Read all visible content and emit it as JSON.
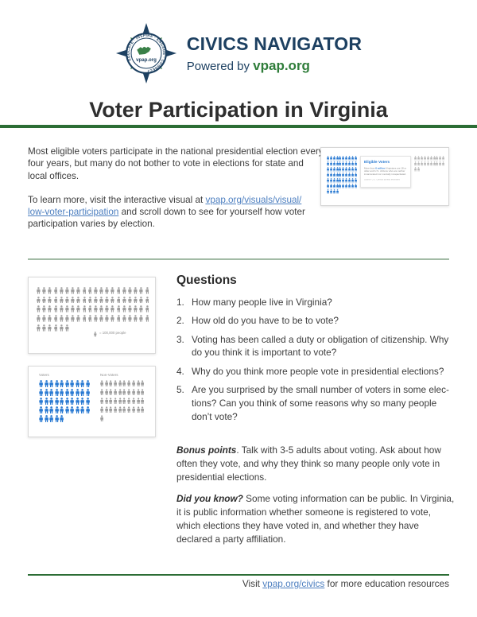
{
  "header": {
    "brand_title": "CIVICS NAVIGATOR",
    "powered_by_prefix": "Powered by ",
    "powered_by_brand": "vpap.org",
    "logo_ring_text": "EDUCATE · INSPIRE · ENGAGE · CONNECT",
    "logo_center": "vpap.org"
  },
  "title": "Voter Participation in Virginia",
  "intro": {
    "paragraph1": "Most eligible voters participate in the national presidential election every four years, but many do not bother to vote in elections for state and local offices.",
    "paragraph2_prefix": "To learn more, visit the interactive visual at ",
    "link_part1": "vpap.org/visuals/visual/",
    "link_part2": "low-voter-participation",
    "paragraph2_suffix": " and scroll down to see for yourself how voter participation varies by election."
  },
  "preview_card": {
    "title": "Eligible Voters",
    "body_prefix": "More than ",
    "body_highlight": "6 million",
    "body_suffix": " Virginians are 18 or older and U.S. citizens who are neither incarcerated nor mentally incapacitated.",
    "footnote": "Source: U.S. Census Bureau estimates"
  },
  "questions": {
    "heading": "Questions",
    "items": [
      "How many people live in Virginia?",
      "How old do you have to be to vote?",
      "Voting has been called a duty or obligation of citizenship. Why do you think it is important to vote?",
      "Why do you think more people vote in presidential elections?",
      "Are you surprised by the small number of voters in some elec­tions? Can you think of some reasons why so many people don’t vote?"
    ]
  },
  "bonus": {
    "label": "Bonus points",
    "text": ". Talk with 3-5 adults about voting. Ask about how often they vote, and why they think so many people only vote in presidential elections."
  },
  "did_you_know": {
    "label": "Did you know?",
    "text": " Some voting information can be public. In Virginia, it is public information whether someone is registered to vote, which elections they have voted in, and whether they have declared a party affiliation."
  },
  "footer": {
    "prefix": "Visit ",
    "link_text": "vpap.org/civics",
    "suffix": " for more education resources"
  },
  "colors": {
    "accent_green": "#2c6d35",
    "divider_green": "#a3bba6",
    "brand_navy": "#1d4061",
    "brand_green": "#2f7d3a",
    "link_blue": "#4d7fc0",
    "icon_blue": "#2a7ad2",
    "icon_gray": "#9e9e9e",
    "body_text": "#3d3d3d"
  },
  "chart_data": [
    {
      "type": "pictograph",
      "name": "virginia-population",
      "unit_per_icon": 100000,
      "legend": "= 100,000 people",
      "groups": [
        {
          "name": "",
          "count": 86,
          "per_row": 20,
          "color": "#9e9e9e"
        }
      ]
    },
    {
      "type": "pictograph",
      "name": "voters-vs-nonvoters",
      "unit_per_icon": 100000,
      "groups": [
        {
          "name": "Voters",
          "count": 45,
          "per_row": 10,
          "color": "#2a7ad2"
        },
        {
          "name": "Non-Voters",
          "count": 41,
          "per_row": 10,
          "color": "#9e9e9e"
        }
      ]
    },
    {
      "type": "pictograph",
      "name": "eligible-voters-interactive-preview",
      "groups": [
        {
          "name": "",
          "count": 64,
          "per_row": 10,
          "color": "#2a7ad2"
        },
        {
          "name": "",
          "count": 22,
          "per_row": 10,
          "color": "#b8b8b8"
        }
      ]
    }
  ]
}
